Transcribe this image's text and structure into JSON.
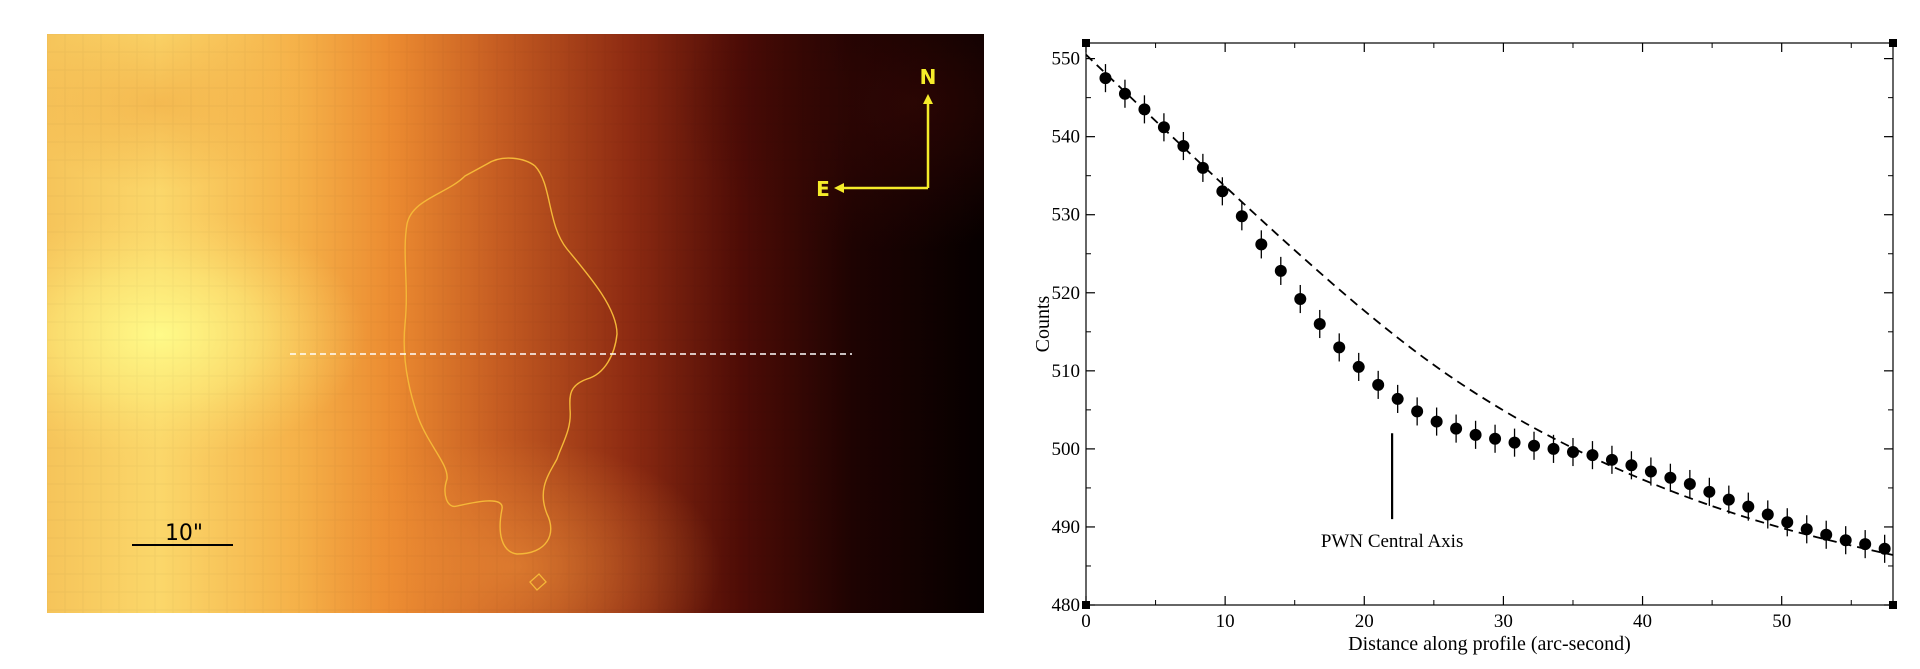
{
  "image_panel": {
    "scale_bar_label": "10\"",
    "compass_north": "N",
    "compass_east": "E",
    "colors": {
      "bright": "#fffc8a",
      "mid": "#e8802a",
      "dark": "#000000",
      "contour": "#f5b838",
      "annotation": "#f5ec2a",
      "profile_line": "#ffffff"
    }
  },
  "chart_data": {
    "type": "scatter",
    "xlabel": "Distance along profile (arc-second)",
    "ylabel": "Counts",
    "xlim": [
      0,
      58
    ],
    "ylim": [
      480,
      552
    ],
    "x_ticks": [
      0,
      10,
      20,
      30,
      40,
      50
    ],
    "y_ticks": [
      480,
      490,
      500,
      510,
      520,
      530,
      540,
      550
    ],
    "grid": false,
    "annotation": {
      "text": "PWN Central Axis",
      "x": 22,
      "y_top": 502,
      "y_bottom": 491
    },
    "series": [
      {
        "kind": "points_with_errorbars",
        "error": 1.8,
        "x": [
          1.4,
          2.8,
          4.2,
          5.6,
          7.0,
          8.4,
          9.8,
          11.2,
          12.6,
          14.0,
          15.4,
          16.8,
          18.2,
          19.6,
          21.0,
          22.4,
          23.8,
          25.2,
          26.6,
          28.0,
          29.4,
          30.8,
          32.2,
          33.6,
          35.0,
          36.4,
          37.8,
          39.2,
          40.6,
          42.0,
          43.4,
          44.8,
          46.2,
          47.6,
          49.0,
          50.4,
          51.8,
          53.2,
          54.6,
          56.0,
          57.4
        ],
        "y": [
          547.5,
          545.5,
          543.5,
          541.2,
          538.8,
          536.0,
          533.0,
          529.8,
          526.2,
          522.8,
          519.2,
          516.0,
          513.0,
          510.5,
          508.2,
          506.4,
          504.8,
          503.5,
          502.6,
          501.8,
          501.3,
          500.8,
          500.4,
          500.0,
          499.6,
          499.2,
          498.6,
          497.9,
          497.1,
          496.3,
          495.5,
          494.5,
          493.5,
          492.6,
          491.6,
          490.6,
          489.7,
          489.0,
          488.3,
          487.8,
          487.2
        ]
      },
      {
        "kind": "dashed_model",
        "x": [
          0,
          5,
          10,
          15,
          20,
          25,
          30,
          35,
          40,
          45,
          50,
          55,
          58
        ],
        "y": [
          550.5,
          542.0,
          533.6,
          525.4,
          517.6,
          510.6,
          504.8,
          500.0,
          496.0,
          492.6,
          489.8,
          487.6,
          486.4
        ]
      }
    ]
  }
}
